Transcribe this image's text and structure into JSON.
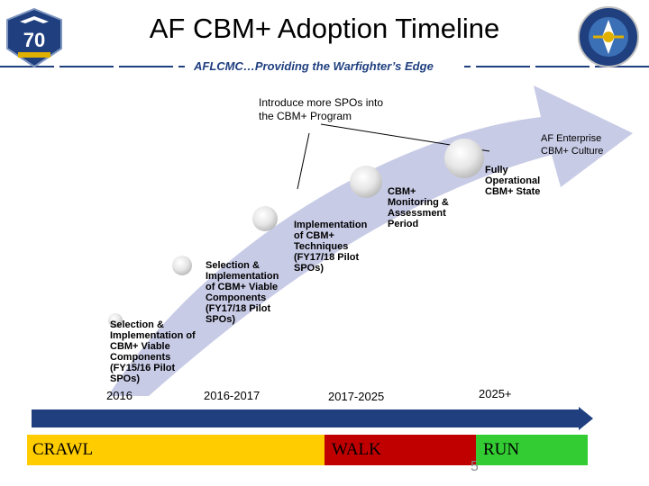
{
  "header": {
    "title": "AF CBM+ Adoption Timeline",
    "subtitle": "AFLCMC…Providing the Warfighter’s Edge",
    "left_logo_text": "70",
    "right_logo_text": "AIR FORCE LCMC"
  },
  "callout": {
    "text": "Introduce more SPOs into\nthe CBM+ Program"
  },
  "stages": [
    {
      "label": "Selection &\nImplementation of\nCBM+ Viable\nComponents\n(FY15/16 Pilot\nSPOs)"
    },
    {
      "label": "Selection &\nImplementation\nof CBM+ Viable\nComponents\n(FY17/18 Pilot\nSPOs)"
    },
    {
      "label": "Implementation\nof CBM+\nTechniques\n(FY17/18 Pilot\nSPOs)"
    },
    {
      "label": "CBM+\nMonitoring &\nAssessment\nPeriod"
    },
    {
      "label": "Fully\nOperational\nCBM+ State"
    }
  ],
  "enterprise": {
    "label": "AF Enterprise\nCBM+ Culture"
  },
  "years": [
    "2016",
    "2016-2017",
    "2017-2025",
    "2025+"
  ],
  "phases": [
    {
      "label": "CRAWL",
      "color": "#ffcc00"
    },
    {
      "label": "WALK",
      "color": "#c00000"
    },
    {
      "label": "RUN",
      "color": "#33cc33"
    }
  ],
  "colors": {
    "arrow": "#c8cbe6",
    "timeline_bar": "#1f3f7f",
    "subtitle_banner": "#1f3f7f"
  },
  "page_number": "5"
}
